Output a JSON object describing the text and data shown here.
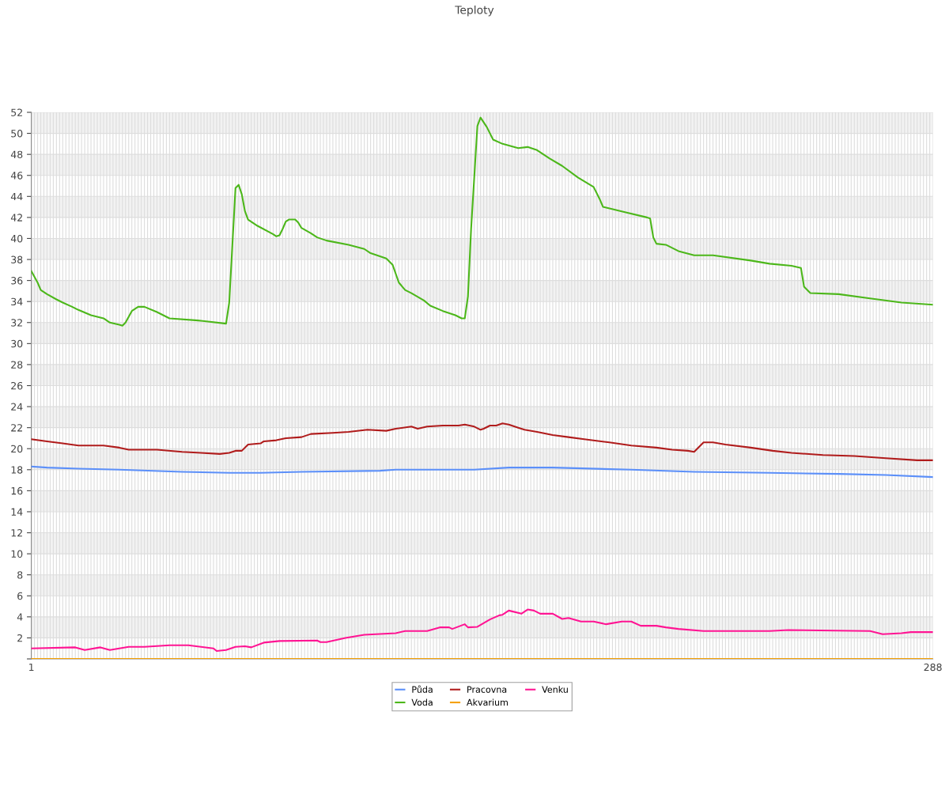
{
  "chart_data": {
    "type": "line",
    "title": "Teploty",
    "xlim": [
      1,
      288
    ],
    "xticks": [
      1,
      {
        "value": 2,
        "label": null
      },
      {
        "value": 3,
        "label": null
      },
      {
        "value": 4,
        "label": null
      },
      {
        "value": 5,
        "label": null
      },
      {
        "value": 6,
        "label": null
      },
      {
        "value": 7,
        "label": null
      },
      {
        "value": 8,
        "label": null
      },
      {
        "value": 9,
        "label": null
      },
      {
        "value": 10,
        "label": null
      },
      {
        "value": 11,
        "label": null
      },
      {
        "value": 12,
        "label": null
      },
      {
        "value": 13,
        "label": null
      },
      {
        "value": 14,
        "label": null
      },
      {
        "value": 15,
        "label": null
      },
      {
        "value": 16,
        "label": null
      },
      {
        "value": 17,
        "label": null
      },
      {
        "value": 18,
        "label": null
      },
      {
        "value": 19,
        "label": null
      },
      {
        "value": 20,
        "label": null
      },
      {
        "value": 21,
        "label": null
      },
      {
        "value": 22,
        "label": null
      },
      {
        "value": 23,
        "label": null
      },
      {
        "value": 24,
        "label": null
      },
      {
        "value": 25,
        "label": null
      },
      {
        "value": 26,
        "label": null
      },
      {
        "value": 27,
        "label": null
      },
      {
        "value": 28,
        "label": null
      },
      {
        "value": 29,
        "label": null
      },
      {
        "value": 30,
        "label": null
      },
      {
        "value": 31,
        "label": null
      },
      {
        "value": 32,
        "label": null
      },
      {
        "value": 33,
        "label": null
      },
      {
        "value": 34,
        "label": null
      },
      {
        "value": 35,
        "label": null
      },
      {
        "value": 36,
        "label": null
      },
      {
        "value": 37,
        "label": null
      },
      {
        "value": 38,
        "label": null
      },
      {
        "value": 39,
        "label": null
      },
      {
        "value": 40,
        "label": null
      },
      {
        "value": 41,
        "label": null
      },
      {
        "value": 42,
        "label": null
      },
      {
        "value": 43,
        "label": null
      },
      {
        "value": 44,
        "label": null
      },
      {
        "value": 45,
        "label": null
      },
      {
        "value": 46,
        "label": null
      },
      {
        "value": 47,
        "label": null
      },
      {
        "value": 48,
        "label": null
      },
      {
        "value": 49,
        "label": null
      },
      {
        "value": 50,
        "label": null
      },
      {
        "value": 51,
        "label": null
      },
      {
        "value": 52,
        "label": null
      },
      {
        "value": 53,
        "label": null
      },
      {
        "value": 54,
        "label": null
      },
      {
        "value": 55,
        "label": null
      },
      {
        "value": 56,
        "label": null
      },
      {
        "value": 57,
        "label": null
      },
      {
        "value": 58,
        "label": null
      },
      {
        "value": 59,
        "label": null
      },
      {
        "value": 60,
        "label": null
      },
      {
        "value": 61,
        "label": null
      },
      {
        "value": 62,
        "label": null
      },
      {
        "value": 63,
        "label": null
      },
      {
        "value": 64,
        "label": null
      },
      {
        "value": 65,
        "label": null
      },
      {
        "value": 66,
        "label": null
      },
      {
        "value": 67,
        "label": null
      },
      {
        "value": 68,
        "label": null
      },
      {
        "value": 69,
        "label": null
      },
      {
        "value": 70,
        "label": null
      },
      {
        "value": 71,
        "label": null
      },
      {
        "value": 72,
        "label": null
      },
      {
        "value": 73,
        "label": null
      },
      {
        "value": 74,
        "label": null
      },
      {
        "value": 75,
        "label": null
      },
      {
        "value": 76,
        "label": null
      },
      {
        "value": 77,
        "label": null
      },
      {
        "value": 78,
        "label": null
      },
      {
        "value": 79,
        "label": null
      },
      {
        "value": 80,
        "label": null
      },
      {
        "value": 81,
        "label": null
      },
      {
        "value": 82,
        "label": null
      },
      {
        "value": 83,
        "label": null
      },
      {
        "value": 84,
        "label": null
      },
      {
        "value": 85,
        "label": null
      },
      {
        "value": 86,
        "label": null
      },
      {
        "value": 87,
        "label": null
      },
      {
        "value": 88,
        "label": null
      },
      {
        "value": 89,
        "label": null
      },
      {
        "value": 90,
        "label": null
      },
      {
        "value": 91,
        "label": null
      },
      {
        "value": 92,
        "label": null
      },
      {
        "value": 93,
        "label": null
      },
      {
        "value": 94,
        "label": null
      },
      {
        "value": 95,
        "label": null
      },
      {
        "value": 96,
        "label": null
      },
      {
        "value": 97,
        "label": null
      },
      {
        "value": 98,
        "label": null
      },
      {
        "value": 99,
        "label": null
      },
      {
        "value": 100,
        "label": null
      },
      {
        "value": 101,
        "label": null
      },
      {
        "value": 102,
        "label": null
      },
      {
        "value": 103,
        "label": null
      },
      {
        "value": 104,
        "label": null
      },
      {
        "value": 105,
        "label": null
      },
      {
        "value": 106,
        "label": null
      },
      {
        "value": 107,
        "label": null
      },
      {
        "value": 108,
        "label": null
      },
      {
        "value": 109,
        "label": null
      },
      {
        "value": 110,
        "label": null
      },
      {
        "value": 111,
        "label": null
      },
      {
        "value": 112,
        "label": null
      },
      {
        "value": 113,
        "label": null
      },
      {
        "value": 114,
        "label": null
      },
      {
        "value": 115,
        "label": null
      },
      {
        "value": 116,
        "label": null
      },
      {
        "value": 117,
        "label": null
      },
      {
        "value": 118,
        "label": null
      },
      {
        "value": 119,
        "label": null
      },
      {
        "value": 120,
        "label": null
      },
      {
        "value": 121,
        "label": null
      },
      {
        "value": 122,
        "label": null
      },
      {
        "value": 123,
        "label": null
      },
      {
        "value": 124,
        "label": null
      },
      {
        "value": 125,
        "label": null
      },
      {
        "value": 126,
        "label": null
      },
      {
        "value": 127,
        "label": null
      },
      {
        "value": 128,
        "label": null
      },
      {
        "value": 129,
        "label": null
      },
      {
        "value": 130,
        "label": null
      },
      {
        "value": 131,
        "label": null
      },
      {
        "value": 132,
        "label": null
      },
      {
        "value": 133,
        "label": null
      },
      {
        "value": 134,
        "label": null
      },
      {
        "value": 135,
        "label": null
      },
      {
        "value": 136,
        "label": null
      },
      {
        "value": 137,
        "label": null
      },
      {
        "value": 138,
        "label": null
      },
      {
        "value": 139,
        "label": null
      },
      {
        "value": 140,
        "label": null
      },
      {
        "value": 141,
        "label": null
      },
      {
        "value": 142,
        "label": null
      },
      {
        "value": 143,
        "label": null
      },
      {
        "value": 144,
        "label": null
      },
      {
        "value": 145,
        "label": null
      },
      {
        "value": 146,
        "label": null
      },
      {
        "value": 147,
        "label": null
      },
      {
        "value": 148,
        "label": null
      },
      {
        "value": 149,
        "label": null
      },
      {
        "value": 150,
        "label": null
      },
      {
        "value": 151,
        "label": null
      },
      {
        "value": 152,
        "label": null
      },
      {
        "value": 153,
        "label": null
      },
      {
        "value": 154,
        "label": null
      },
      {
        "value": 155,
        "label": null
      },
      {
        "value": 156,
        "label": null
      },
      {
        "value": 157,
        "label": null
      },
      {
        "value": 158,
        "label": null
      },
      {
        "value": 159,
        "label": null
      },
      {
        "value": 160,
        "label": null
      },
      {
        "value": 161,
        "label": null
      },
      {
        "value": 162,
        "label": null
      },
      {
        "value": 163,
        "label": null
      },
      {
        "value": 164,
        "label": null
      },
      {
        "value": 165,
        "label": null
      },
      {
        "value": 166,
        "label": null
      },
      {
        "value": 167,
        "label": null
      },
      {
        "value": 168,
        "label": null
      },
      {
        "value": 169,
        "label": null
      },
      {
        "value": 170,
        "label": null
      },
      {
        "value": 171,
        "label": null
      },
      {
        "value": 172,
        "label": null
      },
      {
        "value": 173,
        "label": null
      },
      {
        "value": 174,
        "label": null
      },
      {
        "value": 175,
        "label": null
      },
      {
        "value": 176,
        "label": null
      },
      {
        "value": 177,
        "label": null
      },
      {
        "value": 178,
        "label": null
      },
      {
        "value": 179,
        "label": null
      },
      {
        "value": 180,
        "label": null
      },
      {
        "value": 181,
        "label": null
      },
      {
        "value": 182,
        "label": null
      },
      {
        "value": 183,
        "label": null
      },
      {
        "value": 184,
        "label": null
      },
      {
        "value": 185,
        "label": null
      },
      {
        "value": 186,
        "label": null
      },
      {
        "value": 187,
        "label": null
      },
      {
        "value": 188,
        "label": null
      },
      {
        "value": 189,
        "label": null
      },
      {
        "value": 190,
        "label": null
      },
      {
        "value": 191,
        "label": null
      },
      {
        "value": 192,
        "label": null
      },
      {
        "value": 193,
        "label": null
      },
      {
        "value": 194,
        "label": null
      },
      {
        "value": 195,
        "label": null
      },
      {
        "value": 196,
        "label": null
      },
      {
        "value": 197,
        "label": null
      },
      {
        "value": 198,
        "label": null
      },
      {
        "value": 199,
        "label": null
      },
      {
        "value": 200,
        "label": null
      },
      {
        "value": 201,
        "label": null
      },
      {
        "value": 202,
        "label": null
      },
      {
        "value": 203,
        "label": null
      },
      {
        "value": 204,
        "label": null
      },
      {
        "value": 205,
        "label": null
      },
      {
        "value": 206,
        "label": null
      },
      {
        "value": 207,
        "label": null
      },
      {
        "value": 208,
        "label": null
      },
      {
        "value": 209,
        "label": null
      },
      {
        "value": 210,
        "label": null
      },
      {
        "value": 211,
        "label": null
      },
      {
        "value": 212,
        "label": null
      },
      {
        "value": 213,
        "label": null
      },
      {
        "value": 214,
        "label": null
      },
      {
        "value": 215,
        "label": null
      },
      {
        "value": 216,
        "label": null
      },
      {
        "value": 217,
        "label": null
      },
      {
        "value": 218,
        "label": null
      },
      {
        "value": 219,
        "label": null
      },
      {
        "value": 220,
        "label": null
      },
      {
        "value": 221,
        "label": null
      },
      {
        "value": 222,
        "label": null
      },
      {
        "value": 223,
        "label": null
      },
      {
        "value": 224,
        "label": null
      },
      {
        "value": 225,
        "label": null
      },
      {
        "value": 226,
        "label": null
      },
      {
        "value": 227,
        "label": null
      },
      {
        "value": 228,
        "label": null
      },
      {
        "value": 229,
        "label": null
      },
      {
        "value": 230,
        "label": null
      },
      {
        "value": 231,
        "label": null
      },
      {
        "value": 232,
        "label": null
      },
      {
        "value": 233,
        "label": null
      },
      {
        "value": 234,
        "label": null
      },
      {
        "value": 235,
        "label": null
      },
      {
        "value": 236,
        "label": null
      },
      {
        "value": 237,
        "label": null
      },
      {
        "value": 238,
        "label": null
      },
      {
        "value": 239,
        "label": null
      },
      {
        "value": 240,
        "label": null
      },
      {
        "value": 241,
        "label": null
      },
      {
        "value": 242,
        "label": null
      },
      {
        "value": 243,
        "label": null
      },
      {
        "value": 244,
        "label": null
      },
      {
        "value": 245,
        "label": null
      },
      {
        "value": 246,
        "label": null
      },
      {
        "value": 247,
        "label": null
      },
      {
        "value": 248,
        "label": null
      },
      {
        "value": 249,
        "label": null
      },
      {
        "value": 250,
        "label": null
      },
      {
        "value": 251,
        "label": null
      },
      {
        "value": 252,
        "label": null
      },
      {
        "value": 253,
        "label": null
      },
      {
        "value": 254,
        "label": null
      },
      {
        "value": 255,
        "label": null
      },
      {
        "value": 256,
        "label": null
      },
      {
        "value": 257,
        "label": null
      },
      {
        "value": 258,
        "label": null
      },
      {
        "value": 259,
        "label": null
      },
      {
        "value": 260,
        "label": null
      },
      {
        "value": 261,
        "label": null
      },
      {
        "value": 262,
        "label": null
      },
      {
        "value": 263,
        "label": null
      },
      {
        "value": 264,
        "label": null
      },
      {
        "value": 265,
        "label": null
      },
      {
        "value": 266,
        "label": null
      },
      {
        "value": 267,
        "label": null
      },
      {
        "value": 268,
        "label": null
      },
      {
        "value": 269,
        "label": null
      },
      {
        "value": 270,
        "label": null
      },
      {
        "value": 271,
        "label": null
      },
      {
        "value": 272,
        "label": null
      },
      {
        "value": 273,
        "label": null
      },
      {
        "value": 274,
        "label": null
      },
      {
        "value": 275,
        "label": null
      },
      {
        "value": 276,
        "label": null
      },
      {
        "value": 277,
        "label": null
      },
      {
        "value": 278,
        "label": null
      },
      {
        "value": 279,
        "label": null
      },
      {
        "value": 280,
        "label": null
      },
      {
        "value": 281,
        "label": null
      },
      {
        "value": 282,
        "label": null
      },
      {
        "value": 283,
        "label": null
      },
      {
        "value": 284,
        "label": null
      },
      {
        "value": 285,
        "label": null
      },
      {
        "value": 286,
        "label": null
      },
      {
        "value": 287,
        "label": null
      },
      288
    ],
    "ylim": [
      0,
      52
    ],
    "yticks": [
      {
        "value": 0,
        "label": null
      },
      2,
      4,
      6,
      8,
      10,
      12,
      14,
      16,
      18,
      20,
      22,
      24,
      26,
      28,
      30,
      32,
      34,
      36,
      38,
      40,
      42,
      44,
      46,
      48,
      50,
      52
    ],
    "grid": true,
    "legend": "bottom",
    "marker": "none",
    "line_style": "solid",
    "series": [
      {
        "name": "Půda",
        "color": "#5b8ff9",
        "x": [
          1,
          6,
          16,
          29,
          49,
          64,
          74,
          87,
          112,
          117,
          142,
          153,
          167,
          192,
          212,
          236,
          258,
          273,
          288
        ],
        "values": [
          18.3,
          18.2,
          18.1,
          18.0,
          17.8,
          17.7,
          17.7,
          17.8,
          17.9,
          18.0,
          18.0,
          18.2,
          18.2,
          18.0,
          17.8,
          17.7,
          17.6,
          17.5,
          17.3
        ]
      },
      {
        "name": "Voda",
        "color": "#4cb71a",
        "x": [
          1,
          3,
          4,
          6,
          9,
          11,
          14,
          16,
          20,
          24,
          26,
          29,
          30,
          31,
          33,
          35,
          37,
          41,
          45,
          54,
          63,
          64,
          66,
          67,
          68,
          69,
          70,
          73,
          78,
          79,
          80,
          81,
          82,
          83,
          85,
          86,
          87,
          90,
          92,
          95,
          102,
          107,
          109,
          114,
          116,
          118,
          120,
          122,
          126,
          128,
          132,
          136,
          138,
          139,
          140,
          141,
          143,
          144,
          146,
          148,
          151,
          156,
          159,
          162,
          166,
          170,
          175,
          180,
          182,
          183,
          190,
          197,
          198,
          199,
          200,
          203,
          207,
          212,
          218,
          230,
          236,
          243,
          246,
          247,
          249,
          258,
          268,
          278,
          288
        ],
        "values": [
          36.9,
          35.8,
          35.1,
          34.7,
          34.2,
          33.9,
          33.5,
          33.2,
          32.7,
          32.4,
          32.0,
          31.8,
          31.7,
          32.0,
          33.1,
          33.5,
          33.5,
          33.0,
          32.4,
          32.2,
          31.9,
          33.9,
          44.8,
          45.1,
          44.2,
          42.6,
          41.8,
          41.2,
          40.4,
          40.2,
          40.3,
          40.9,
          41.6,
          41.8,
          41.8,
          41.5,
          41.0,
          40.5,
          40.1,
          39.8,
          39.4,
          39.0,
          38.6,
          38.1,
          37.5,
          35.8,
          35.1,
          34.8,
          34.1,
          33.6,
          33.1,
          32.7,
          32.4,
          32.4,
          34.5,
          40.9,
          50.7,
          51.5,
          50.6,
          49.4,
          49.0,
          48.6,
          48.7,
          48.4,
          47.6,
          46.9,
          45.8,
          44.9,
          43.7,
          43.0,
          42.5,
          42.0,
          41.9,
          40.1,
          39.5,
          39.4,
          38.8,
          38.4,
          38.4,
          37.9,
          37.6,
          37.4,
          37.2,
          35.4,
          34.8,
          34.7,
          34.3,
          33.9,
          33.7
        ]
      },
      {
        "name": "Pracovna",
        "color": "#b01c1c",
        "x": [
          1,
          6,
          11,
          16,
          24,
          29,
          32,
          41,
          49,
          55,
          61,
          64,
          66,
          68,
          70,
          74,
          75,
          79,
          82,
          87,
          90,
          97,
          102,
          108,
          114,
          117,
          122,
          124,
          127,
          132,
          137,
          139,
          142,
          144,
          145,
          147,
          149,
          151,
          153,
          156,
          158,
          162,
          167,
          172,
          177,
          185,
          192,
          200,
          205,
          210,
          212,
          215,
          218,
          222,
          230,
          237,
          243,
          253,
          263,
          273,
          283,
          288
        ],
        "values": [
          20.9,
          20.7,
          20.5,
          20.3,
          20.3,
          20.1,
          19.9,
          19.9,
          19.7,
          19.6,
          19.5,
          19.6,
          19.8,
          19.8,
          20.4,
          20.5,
          20.7,
          20.8,
          21.0,
          21.1,
          21.4,
          21.5,
          21.6,
          21.8,
          21.7,
          21.9,
          22.1,
          21.9,
          22.1,
          22.2,
          22.2,
          22.3,
          22.1,
          21.8,
          21.9,
          22.2,
          22.2,
          22.4,
          22.3,
          22.0,
          21.8,
          21.6,
          21.3,
          21.1,
          20.9,
          20.6,
          20.3,
          20.1,
          19.9,
          19.8,
          19.7,
          20.6,
          20.6,
          20.4,
          20.1,
          19.8,
          19.6,
          19.4,
          19.3,
          19.1,
          18.9,
          18.9
        ]
      },
      {
        "name": "Akvarium",
        "color": "#f5a000",
        "x": [
          1,
          288
        ],
        "values": [
          0,
          0
        ]
      },
      {
        "name": "Venku",
        "color": "#ff1493",
        "x": [
          1,
          15,
          18,
          23,
          26,
          32,
          37,
          45,
          51,
          59,
          60,
          63,
          66,
          69,
          71,
          75,
          80,
          92,
          93,
          95,
          101,
          107,
          117,
          120,
          127,
          131,
          134,
          135,
          139,
          140,
          143,
          147,
          150,
          151,
          153,
          157,
          159,
          161,
          163,
          167,
          170,
          172,
          176,
          180,
          184,
          189,
          192,
          195,
          200,
          203,
          207,
          215,
          236,
          242,
          268,
          272,
          278,
          281,
          288
        ],
        "values": [
          1.0,
          1.1,
          0.85,
          1.1,
          0.85,
          1.15,
          1.15,
          1.3,
          1.3,
          1.0,
          0.75,
          0.85,
          1.15,
          1.2,
          1.1,
          1.55,
          1.7,
          1.75,
          1.6,
          1.6,
          2.0,
          2.3,
          2.45,
          2.65,
          2.65,
          3.0,
          3.0,
          2.85,
          3.3,
          3.0,
          3.05,
          3.75,
          4.15,
          4.2,
          4.6,
          4.3,
          4.7,
          4.6,
          4.3,
          4.3,
          3.8,
          3.9,
          3.55,
          3.55,
          3.3,
          3.55,
          3.55,
          3.15,
          3.15,
          3.0,
          2.85,
          2.65,
          2.65,
          2.75,
          2.65,
          2.35,
          2.45,
          2.55,
          2.55
        ]
      }
    ]
  }
}
